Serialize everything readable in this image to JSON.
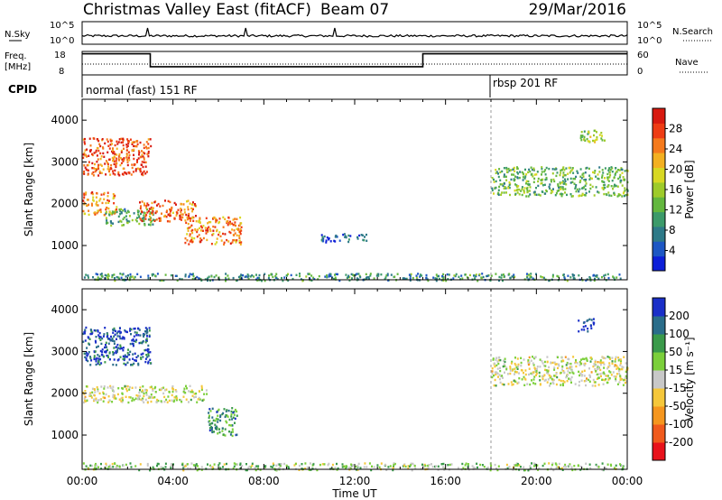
{
  "header": {
    "title": "Christmas Valley East (fitACF)",
    "beam": "Beam 07",
    "date": "29/Mar/2016"
  },
  "nsky_panel": {
    "left_label": "N.Sky",
    "right_label": "N.Search",
    "left_ticks": [
      "10^5",
      "10^0"
    ],
    "right_ticks": [
      "10^5",
      "10^0"
    ]
  },
  "freq_panel": {
    "left_label_1": "Freq.",
    "left_label_2": "[MHz]",
    "right_label": "Nave",
    "left_ticks": [
      "18",
      "8"
    ],
    "right_ticks": [
      "60",
      "0"
    ]
  },
  "cpid": {
    "label": "CPID",
    "segments": [
      {
        "name": "normal (fast) 151 RF",
        "start_hour": 0
      },
      {
        "name": "rbsp 201 RF",
        "start_hour": 18
      }
    ]
  },
  "chart_data": [
    {
      "type": "line",
      "name": "frequency",
      "ylim": [
        8,
        18
      ],
      "x": [
        0,
        3,
        3,
        15,
        15,
        18,
        24
      ],
      "values": [
        17,
        17,
        11.5,
        11.5,
        17,
        17,
        17
      ]
    },
    {
      "type": "heatmap",
      "name": "power",
      "xlabel": "",
      "ylabel": "Slant Range [km]",
      "xlim": [
        0,
        24
      ],
      "ylim": [
        180,
        4500
      ],
      "x_ticks": [
        "00:00",
        "04:00",
        "08:00",
        "12:00",
        "16:00",
        "20:00",
        "00:00"
      ],
      "y_ticks": [
        1000,
        2000,
        3000,
        4000
      ],
      "colorbar": {
        "label": "Power [dB]",
        "ticks": [
          "4",
          "8",
          "12",
          "16",
          "20",
          "24",
          "28"
        ],
        "colors": [
          "#0d1fd8",
          "#1d57c4",
          "#2e7a88",
          "#3c9a6a",
          "#63b73e",
          "#9ecb2a",
          "#d8d823",
          "#f3b021",
          "#f57a1c",
          "#ee3c14",
          "#d81a10"
        ]
      },
      "regions": [
        {
          "t0": 0.0,
          "t1": 3.0,
          "r0": 2700,
          "r1": 3600,
          "level": 0.85
        },
        {
          "t0": 0.0,
          "t1": 1.5,
          "r0": 1750,
          "r1": 2300,
          "level": 0.75
        },
        {
          "t0": 1.0,
          "t1": 3.2,
          "r0": 1500,
          "r1": 1900,
          "level": 0.35
        },
        {
          "t0": 2.5,
          "t1": 5.0,
          "r0": 1600,
          "r1": 2100,
          "level": 0.8
        },
        {
          "t0": 4.5,
          "t1": 7.0,
          "r0": 1050,
          "r1": 1700,
          "level": 0.75
        },
        {
          "t0": 18.0,
          "t1": 24.0,
          "r0": 2200,
          "r1": 2900,
          "level": 0.4
        },
        {
          "t0": 21.8,
          "t1": 23.0,
          "r0": 3500,
          "r1": 3800,
          "level": 0.5
        },
        {
          "t0": 10.5,
          "t1": 12.5,
          "r0": 1100,
          "r1": 1300,
          "level": 0.15
        },
        {
          "t0": 0.0,
          "t1": 24.0,
          "r0": 180,
          "r1": 350,
          "level": 0.3
        }
      ]
    },
    {
      "type": "heatmap",
      "name": "velocity",
      "xlabel": "Time UT",
      "ylabel": "Slant Range [km]",
      "xlim": [
        0,
        24
      ],
      "ylim": [
        180,
        4500
      ],
      "x_ticks": [
        "00:00",
        "04:00",
        "08:00",
        "12:00",
        "16:00",
        "20:00",
        "00:00"
      ],
      "y_ticks": [
        1000,
        2000,
        3000,
        4000
      ],
      "colorbar": {
        "label": "Velocity [m s⁻¹]",
        "ticks": [
          "-200",
          "-100",
          "-50",
          "-15",
          "15",
          "50",
          "100",
          "200"
        ],
        "colors": [
          "#e8121b",
          "#f05a1c",
          "#f5961e",
          "#f5c73a",
          "#c8c8c8",
          "#7bcf3a",
          "#3a9a4a",
          "#2a6d8a",
          "#1a2fc8"
        ]
      },
      "regions": [
        {
          "t0": 0.0,
          "t1": 3.0,
          "r0": 2700,
          "r1": 3600,
          "level": 0.9
        },
        {
          "t0": 0.0,
          "t1": 5.5,
          "r0": 1800,
          "r1": 2200,
          "level": 0.5
        },
        {
          "t0": 5.5,
          "t1": 6.8,
          "r0": 1000,
          "r1": 1700,
          "level": 0.75
        },
        {
          "t0": 18.0,
          "t1": 24.0,
          "r0": 2200,
          "r1": 2900,
          "level": 0.5
        },
        {
          "t0": 21.8,
          "t1": 22.5,
          "r0": 3500,
          "r1": 3800,
          "level": 0.95
        },
        {
          "t0": 0.0,
          "t1": 24.0,
          "r0": 180,
          "r1": 350,
          "level": 0.6
        }
      ]
    }
  ]
}
